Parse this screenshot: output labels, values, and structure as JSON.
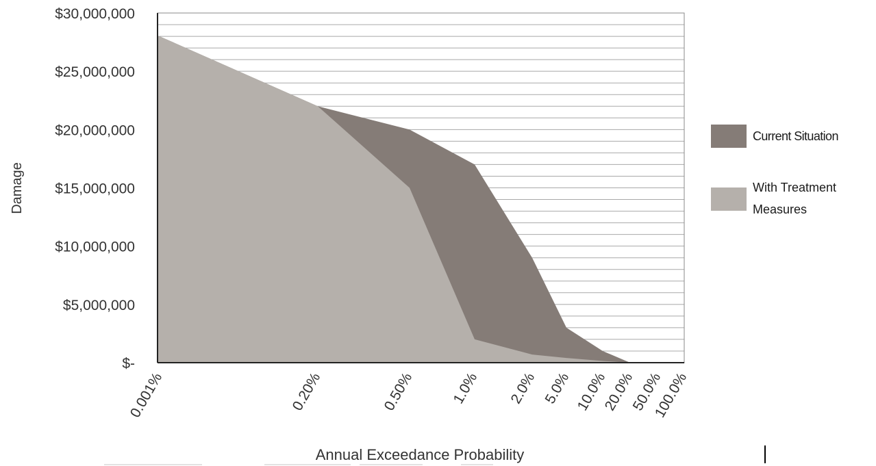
{
  "chart_data": {
    "type": "area",
    "title": "",
    "xlabel": "Annual Exceedance Probability",
    "ylabel": "Damage",
    "ylim": [
      0,
      30000000
    ],
    "x_scale": "categorical-log-spaced",
    "x": [
      "0.001%",
      "0.20%",
      "0.50%",
      "1.0%",
      "2.0%",
      "5.0%",
      "10.0%",
      "20.0%",
      "50.0%",
      "100.0%"
    ],
    "y_ticks": [
      "$-",
      "$5,000,000",
      "$10,000,000",
      "$15,000,000",
      "$20,000,000",
      "$25,000,000",
      "$30,000,000"
    ],
    "y_tick_values": [
      0,
      5000000,
      10000000,
      15000000,
      20000000,
      25000000,
      30000000
    ],
    "series": [
      {
        "name": "Current Situation",
        "color": "#857c77",
        "values": [
          28000000,
          22000000,
          20000000,
          17000000,
          9000000,
          3000000,
          1000000,
          0,
          0,
          0
        ]
      },
      {
        "name": "With Treatment Measures",
        "color": "#b5b0ab",
        "values": [
          28000000,
          22000000,
          15000000,
          2000000,
          700000,
          400000,
          150000,
          0,
          0,
          0
        ]
      }
    ],
    "grid": {
      "horizontal": true,
      "vertical": false
    },
    "legend_position": "right"
  }
}
